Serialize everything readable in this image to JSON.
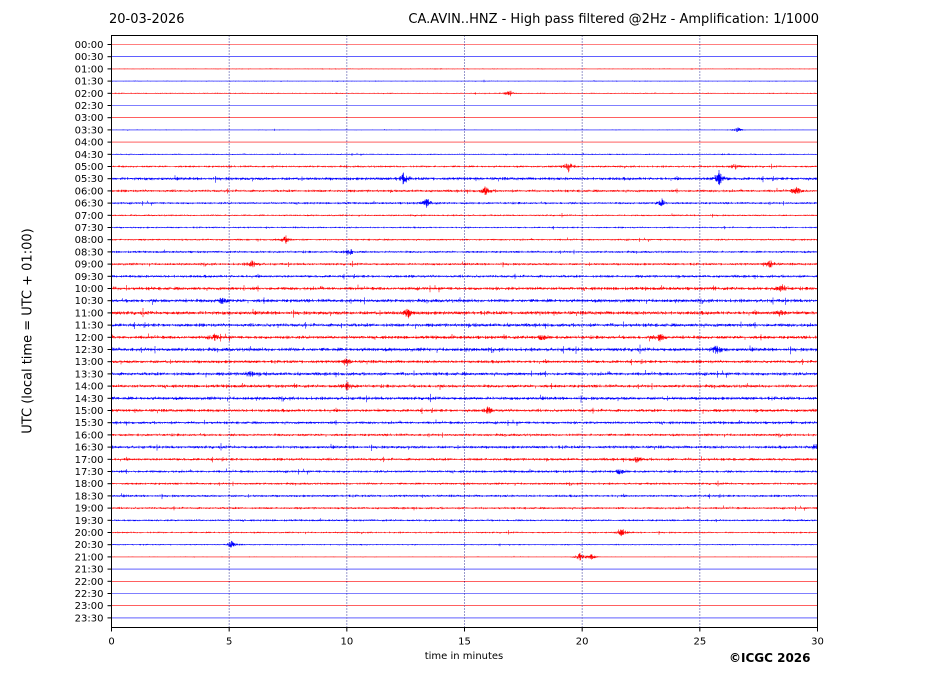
{
  "header": {
    "date": "20-03-2026",
    "title": "CA.AVIN..HNZ - High pass filtered @2Hz - Amplification: 1/1000"
  },
  "footer": {
    "copyright": "©ICGC 2026"
  },
  "colors": {
    "even_rows": "#ff0000",
    "odd_rows": "#0000ff",
    "grid": "#000080"
  },
  "chart_data": {
    "type": "line",
    "title": "CA.AVIN..HNZ - High pass filtered @2Hz - Amplification: 1/1000",
    "xlabel": "time in minutes",
    "ylabel": "UTC (local time = UTC + 01:00)",
    "xlim": [
      0,
      30
    ],
    "xticks": [
      0,
      5,
      10,
      15,
      20,
      25,
      30
    ],
    "grid": "vertical dotted lines at 5-minute ticks",
    "row_labels": [
      "00:00",
      "00:30",
      "01:00",
      "01:30",
      "02:00",
      "02:30",
      "03:00",
      "03:30",
      "04:00",
      "04:30",
      "05:00",
      "05:30",
      "06:00",
      "06:30",
      "07:00",
      "07:30",
      "08:00",
      "08:30",
      "09:00",
      "09:30",
      "10:00",
      "10:30",
      "11:00",
      "11:30",
      "12:00",
      "12:30",
      "13:00",
      "13:30",
      "14:00",
      "14:30",
      "15:00",
      "15:30",
      "16:00",
      "16:30",
      "17:00",
      "17:30",
      "18:00",
      "18:30",
      "19:00",
      "19:30",
      "20:00",
      "20:30",
      "21:00",
      "21:30",
      "22:00",
      "22:30",
      "23:00",
      "23:30"
    ],
    "noise_level": [
      0.15,
      0.15,
      0.6,
      0.6,
      0.7,
      0.15,
      0.15,
      0.5,
      0.15,
      0.8,
      1.2,
      1.8,
      1.5,
      1.3,
      1.0,
      1.0,
      1.1,
      1.3,
      1.4,
      1.6,
      1.9,
      2.0,
      2.1,
      2.0,
      1.9,
      2.1,
      1.8,
      1.9,
      1.8,
      1.9,
      1.8,
      1.6,
      1.5,
      1.7,
      1.6,
      1.5,
      1.3,
      1.4,
      1.3,
      1.2,
      1.0,
      0.8,
      0.5,
      0.15,
      0.15,
      0.15,
      0.15,
      0.15
    ],
    "events": [
      {
        "row": "02:00",
        "minute": 16.9,
        "amplitude": 4
      },
      {
        "row": "03:30",
        "minute": 26.6,
        "amplitude": 3
      },
      {
        "row": "05:00",
        "minute": 19.4,
        "amplitude": 6
      },
      {
        "row": "05:00",
        "minute": 26.5,
        "amplitude": 3
      },
      {
        "row": "05:30",
        "minute": 12.4,
        "amplitude": 5
      },
      {
        "row": "05:30",
        "minute": 25.8,
        "amplitude": 8
      },
      {
        "row": "06:00",
        "minute": 15.9,
        "amplitude": 4
      },
      {
        "row": "06:00",
        "minute": 29.1,
        "amplitude": 4
      },
      {
        "row": "06:30",
        "minute": 13.4,
        "amplitude": 5
      },
      {
        "row": "06:30",
        "minute": 23.4,
        "amplitude": 4
      },
      {
        "row": "08:00",
        "minute": 7.4,
        "amplitude": 4
      },
      {
        "row": "08:30",
        "minute": 10.1,
        "amplitude": 4
      },
      {
        "row": "09:00",
        "minute": 6.0,
        "amplitude": 4
      },
      {
        "row": "09:00",
        "minute": 28.0,
        "amplitude": 4
      },
      {
        "row": "10:00",
        "minute": 28.5,
        "amplitude": 4
      },
      {
        "row": "10:30",
        "minute": 4.7,
        "amplitude": 3
      },
      {
        "row": "11:00",
        "minute": 12.6,
        "amplitude": 4
      },
      {
        "row": "11:00",
        "minute": 28.4,
        "amplitude": 3
      },
      {
        "row": "12:00",
        "minute": 4.4,
        "amplitude": 3
      },
      {
        "row": "12:00",
        "minute": 18.3,
        "amplitude": 3
      },
      {
        "row": "12:00",
        "minute": 23.3,
        "amplitude": 4
      },
      {
        "row": "12:30",
        "minute": 25.7,
        "amplitude": 5
      },
      {
        "row": "13:00",
        "minute": 10.0,
        "amplitude": 3
      },
      {
        "row": "13:30",
        "minute": 5.9,
        "amplitude": 3
      },
      {
        "row": "14:00",
        "minute": 10.0,
        "amplitude": 4
      },
      {
        "row": "15:00",
        "minute": 16.0,
        "amplitude": 3
      },
      {
        "row": "16:30",
        "minute": 29.9,
        "amplitude": 3
      },
      {
        "row": "17:00",
        "minute": 22.3,
        "amplitude": 3
      },
      {
        "row": "17:30",
        "minute": 21.6,
        "amplitude": 3
      },
      {
        "row": "20:00",
        "minute": 21.7,
        "amplitude": 4
      },
      {
        "row": "20:30",
        "minute": 5.1,
        "amplitude": 4
      },
      {
        "row": "21:00",
        "minute": 19.9,
        "amplitude": 4
      },
      {
        "row": "21:00",
        "minute": 20.4,
        "amplitude": 3
      }
    ]
  }
}
